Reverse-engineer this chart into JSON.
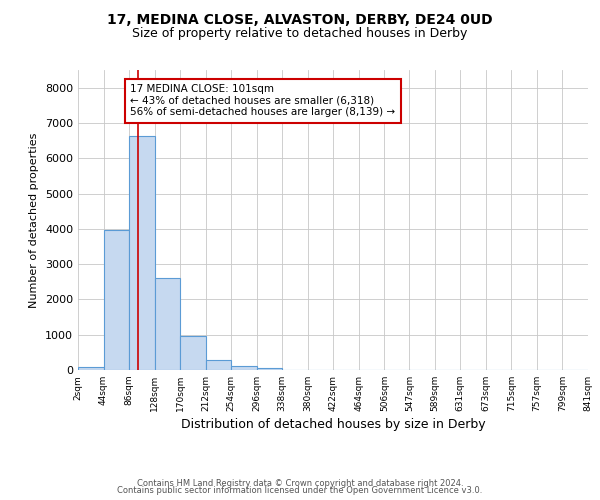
{
  "title_line1": "17, MEDINA CLOSE, ALVASTON, DERBY, DE24 0UD",
  "title_line2": "Size of property relative to detached houses in Derby",
  "xlabel": "Distribution of detached houses by size in Derby",
  "ylabel": "Number of detached properties",
  "annotation_line1": "17 MEDINA CLOSE: 101sqm",
  "annotation_line2": "← 43% of detached houses are smaller (6,318)",
  "annotation_line3": "56% of semi-detached houses are larger (8,139) →",
  "property_size_sqm": 101,
  "bin_edges": [
    2,
    44,
    86,
    128,
    170,
    212,
    254,
    296,
    338,
    380,
    422,
    464,
    506,
    547,
    589,
    631,
    673,
    715,
    757,
    799,
    841
  ],
  "bar_heights": [
    80,
    3980,
    6630,
    2620,
    960,
    290,
    110,
    70,
    0,
    0,
    0,
    0,
    0,
    0,
    0,
    0,
    0,
    0,
    0,
    0
  ],
  "bar_color": "#c6d9f0",
  "bar_edge_color": "#5b9bd5",
  "vline_color": "#cc0000",
  "vline_x": 101,
  "annotation_box_color": "#cc0000",
  "annotation_text_color": "#000000",
  "background_color": "#ffffff",
  "ylim": [
    0,
    8500
  ],
  "yticks": [
    0,
    1000,
    2000,
    3000,
    4000,
    5000,
    6000,
    7000,
    8000
  ],
  "grid_color": "#c8c8c8",
  "footer_line1": "Contains HM Land Registry data © Crown copyright and database right 2024.",
  "footer_line2": "Contains public sector information licensed under the Open Government Licence v3.0."
}
